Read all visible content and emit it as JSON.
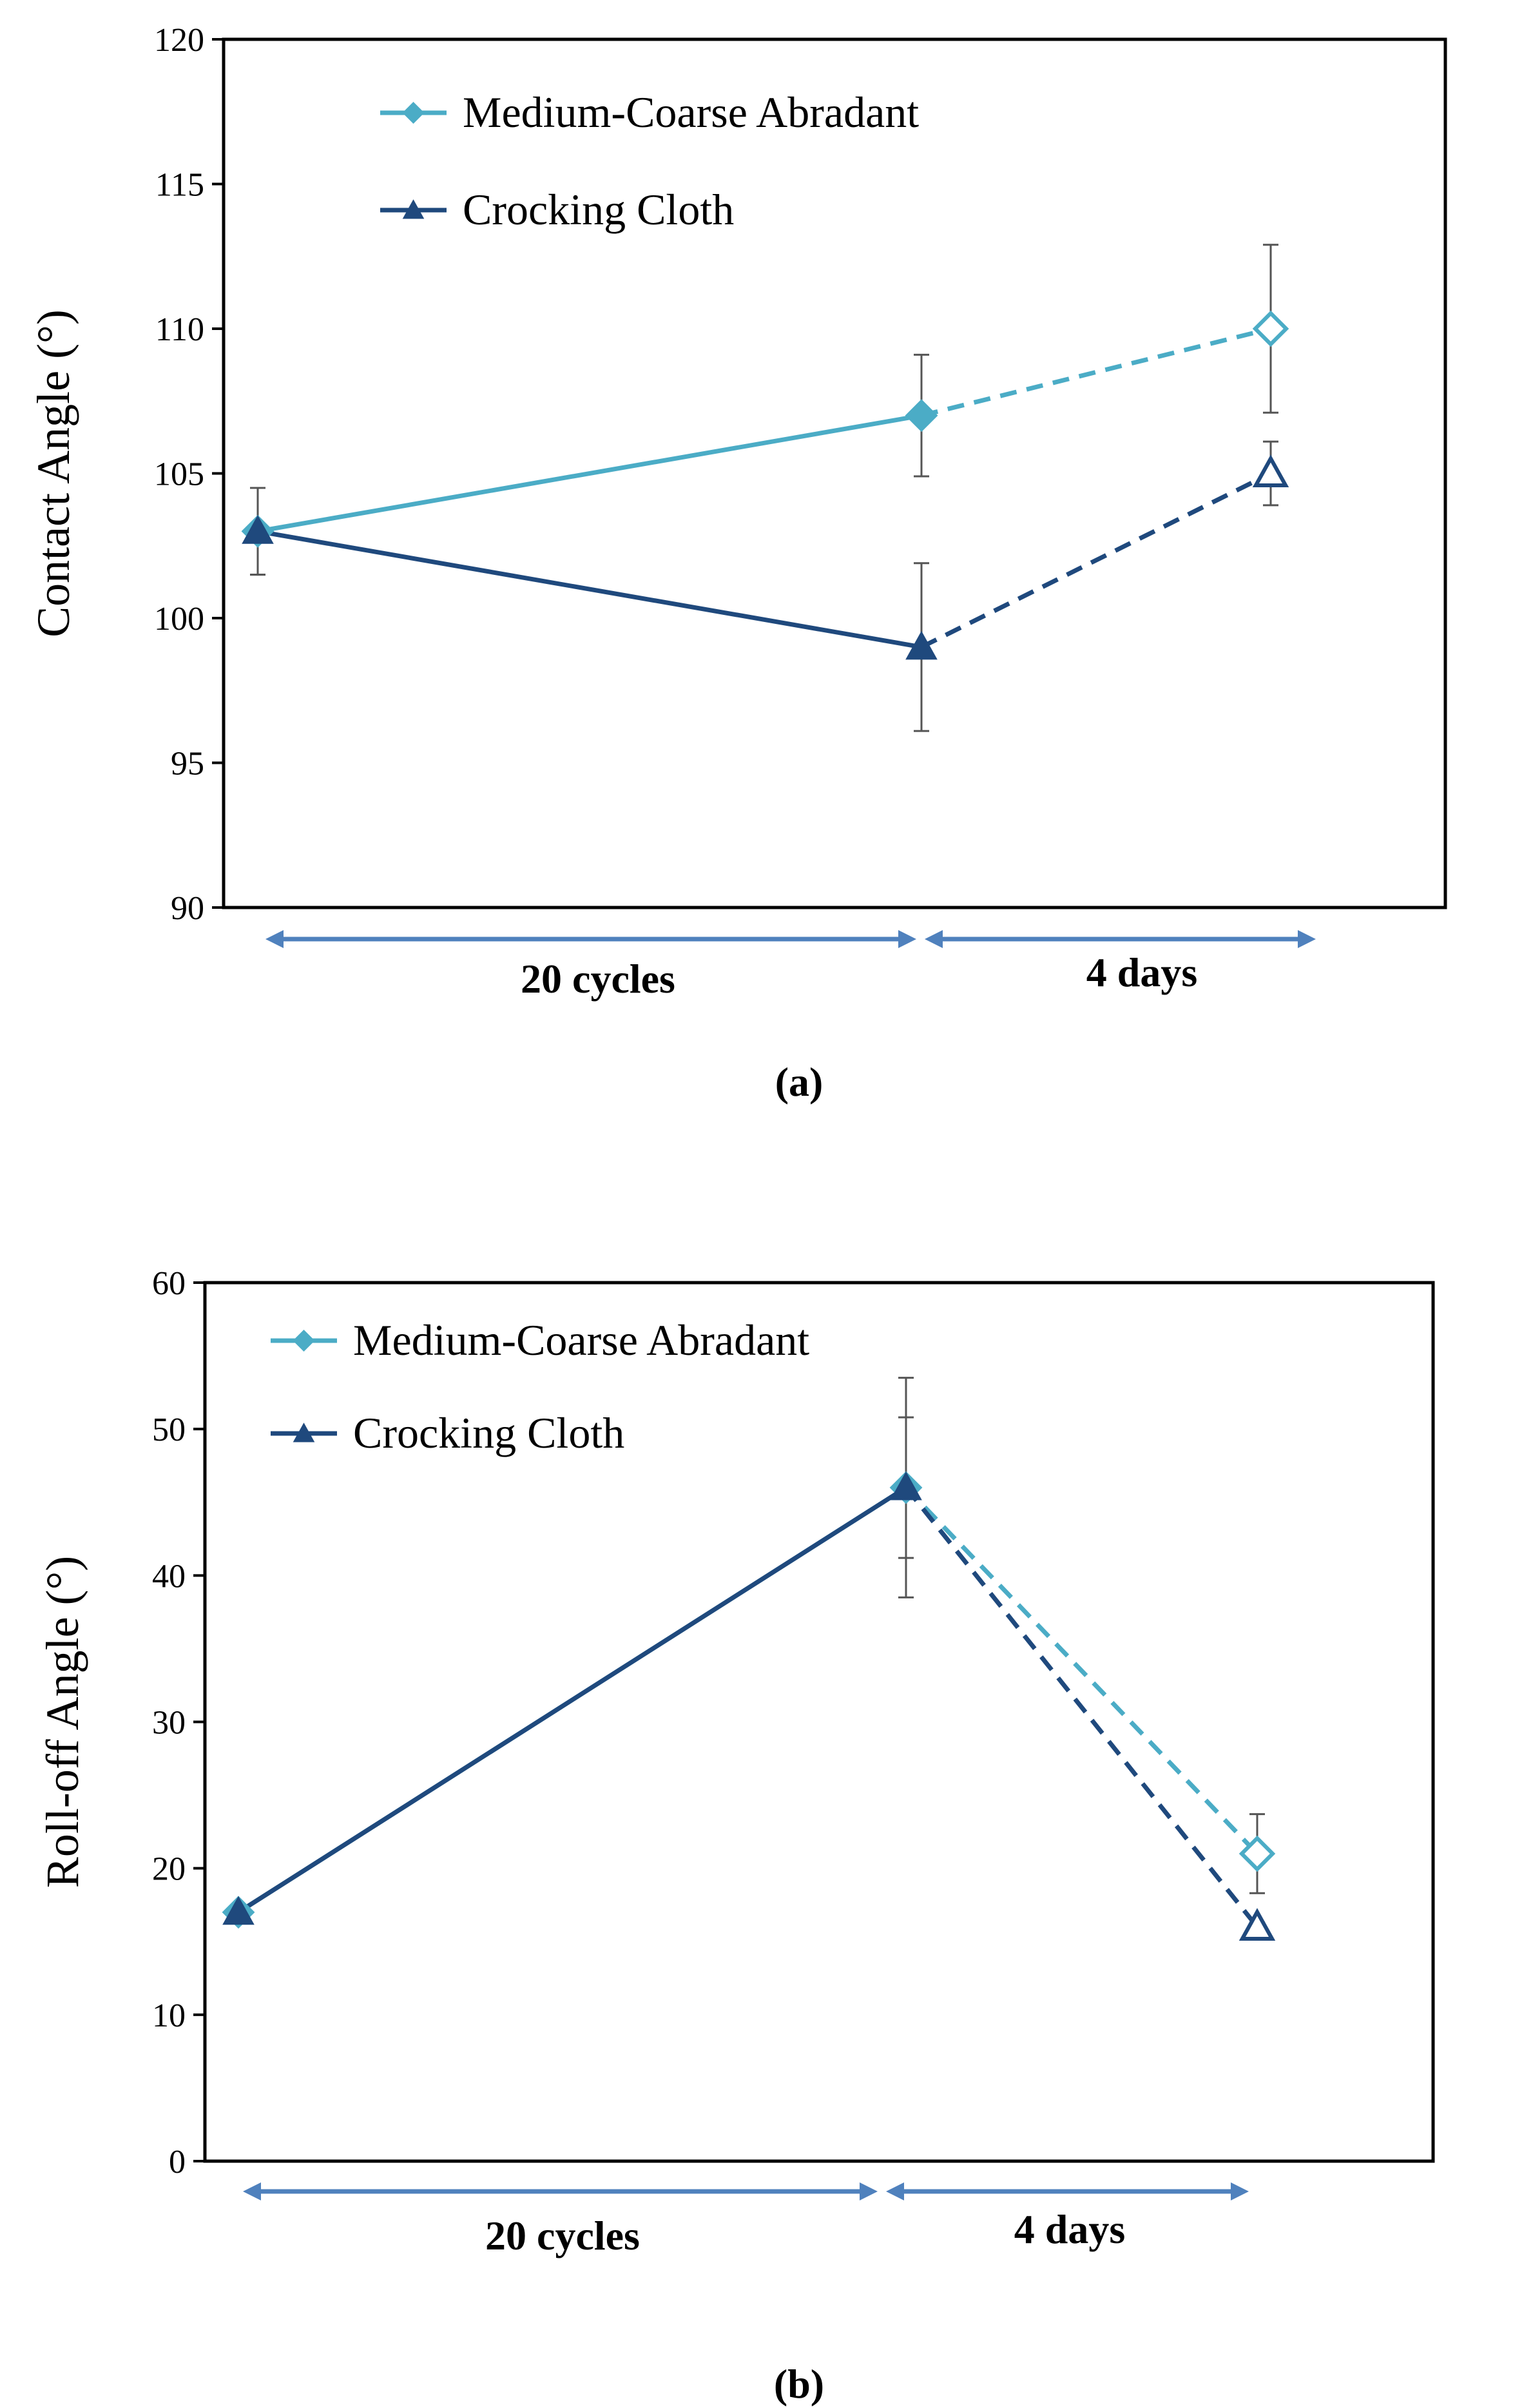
{
  "chart_data": [
    {
      "type": "line",
      "panel_label": "(a)",
      "ylabel": "Contact Angle (°)",
      "xlabel": "",
      "ylim": [
        90,
        120
      ],
      "yticks": [
        90,
        95,
        100,
        105,
        110,
        115,
        120
      ],
      "x": [
        0,
        1,
        2
      ],
      "phase_labels": [
        "20 cycles",
        "4 days"
      ],
      "legend_position": "top-left",
      "series": [
        {
          "name": "Medium-Coarse Abradant",
          "marker": "diamond",
          "color": "#4BACC6",
          "values": [
            103,
            107,
            110
          ],
          "errors": [
            1.5,
            2.1,
            2.9
          ]
        },
        {
          "name": "Crocking Cloth",
          "marker": "triangle",
          "color": "#1F497D",
          "values": [
            103,
            99,
            105
          ],
          "errors": [
            1.5,
            2.9,
            1.1
          ]
        }
      ]
    },
    {
      "type": "line",
      "panel_label": "(b)",
      "ylabel": "Roll-off Angle (°)",
      "xlabel": "",
      "ylim": [
        0,
        60
      ],
      "yticks": [
        0,
        10,
        20,
        30,
        40,
        50,
        60
      ],
      "x": [
        0,
        1,
        2
      ],
      "phase_labels": [
        "20 cycles",
        "4 days"
      ],
      "legend_position": "top-left",
      "series": [
        {
          "name": "Medium-Coarse Abradant",
          "marker": "diamond",
          "color": "#4BACC6",
          "values": [
            17,
            46,
            21
          ],
          "errors": [
            0.3,
            4.8,
            2.7
          ]
        },
        {
          "name": "Crocking Cloth",
          "marker": "triangle",
          "color": "#1F497D",
          "values": [
            17,
            46,
            16
          ],
          "errors": [
            0.3,
            7.5,
            0.3
          ]
        }
      ]
    }
  ],
  "arrow_color": "#4F81BD"
}
